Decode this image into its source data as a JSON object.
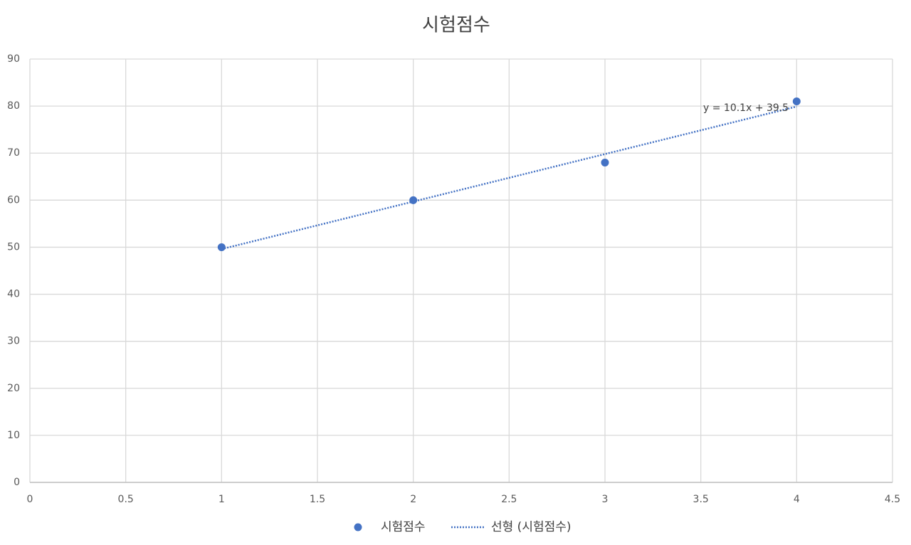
{
  "chart_data": {
    "type": "scatter",
    "title": "시험점수",
    "series": [
      {
        "name": "시험점수",
        "color": "#4472c4",
        "mode": "markers",
        "x": [
          1,
          2,
          3,
          4
        ],
        "values": [
          50,
          60,
          68,
          81
        ]
      },
      {
        "name": "선형 (시험점수)",
        "color": "#4472c4",
        "mode": "dotted-line",
        "x": [
          1,
          4
        ],
        "values": [
          49.6,
          79.9
        ]
      }
    ],
    "annotation": "y = 10.1x + 39.5",
    "xlim": [
      0,
      4.5
    ],
    "xticks": [
      0,
      0.5,
      1,
      1.5,
      2,
      2.5,
      3,
      3.5,
      4,
      4.5
    ],
    "ylim": [
      0,
      90
    ],
    "yticks": [
      0,
      10,
      20,
      30,
      40,
      50,
      60,
      70,
      80,
      90
    ],
    "grid": true,
    "legend": "bottom"
  }
}
